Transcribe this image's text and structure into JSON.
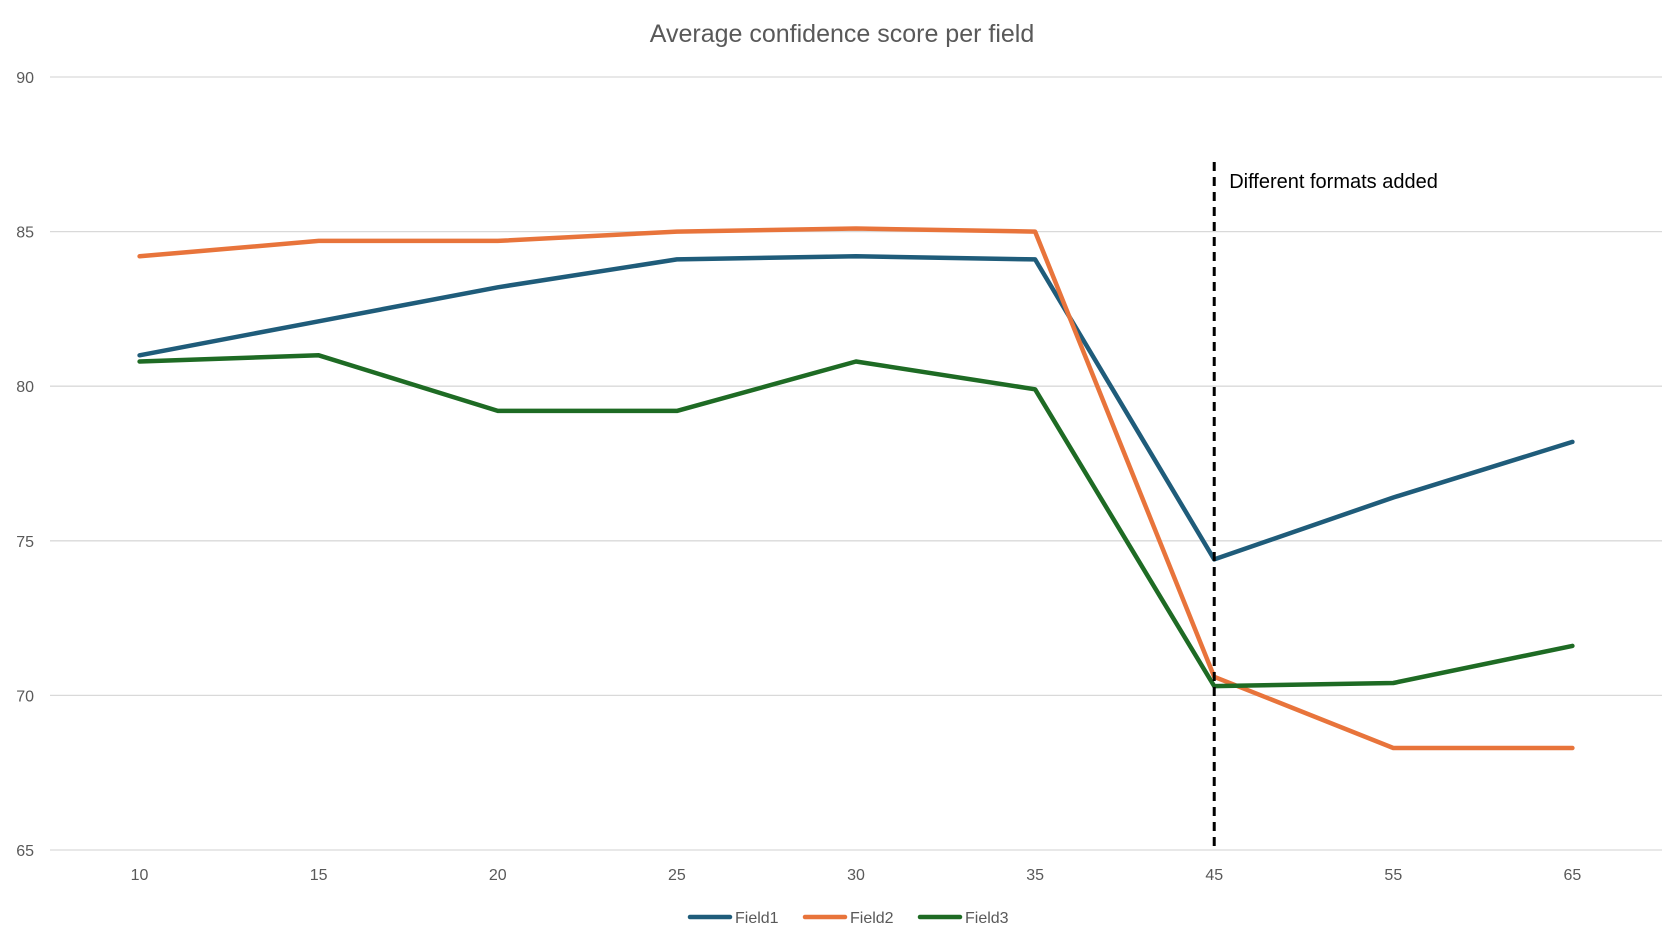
{
  "chart_data": {
    "type": "line",
    "title": "Average confidence score per field",
    "xlabel": "",
    "ylabel": "",
    "categories": [
      "10",
      "15",
      "20",
      "25",
      "30",
      "35",
      "45",
      "55",
      "65"
    ],
    "ylim": [
      65,
      90
    ],
    "yticks": [
      "90",
      "85",
      "80",
      "75",
      "70",
      "65"
    ],
    "grid": true,
    "legend_position": "bottom",
    "series": [
      {
        "name": "Field1",
        "color": "#1f5c7a",
        "values": [
          81.0,
          82.1,
          83.2,
          84.1,
          84.2,
          84.1,
          74.4,
          76.4,
          78.2
        ]
      },
      {
        "name": "Field2",
        "color": "#e8743b",
        "values": [
          84.2,
          84.7,
          84.7,
          85.0,
          85.1,
          85.0,
          70.6,
          68.3,
          68.3
        ]
      },
      {
        "name": "Field3",
        "color": "#1e6b24",
        "values": [
          80.8,
          81.0,
          79.2,
          79.2,
          80.8,
          79.9,
          70.3,
          70.4,
          71.6
        ]
      }
    ],
    "annotations": [
      {
        "text": "Different formats added",
        "at_category": "45",
        "style": "dashed-vertical-line"
      }
    ]
  }
}
